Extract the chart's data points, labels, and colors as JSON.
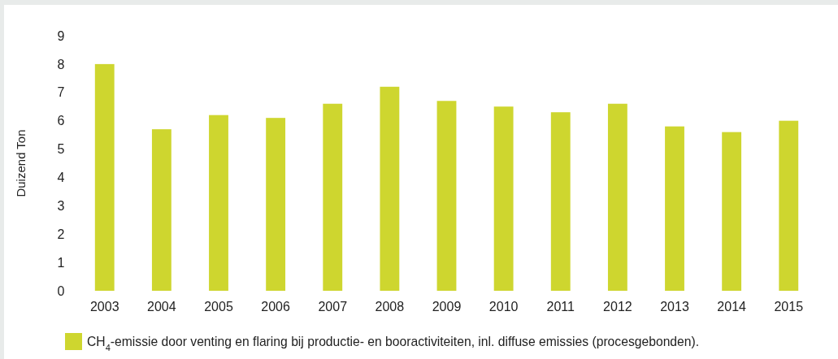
{
  "chart_data": {
    "type": "bar",
    "ylabel": "Duizend Ton",
    "categories": [
      "2003",
      "2004",
      "2005",
      "2006",
      "2007",
      "2008",
      "2009",
      "2010",
      "2011",
      "2012",
      "2013",
      "2014",
      "2015"
    ],
    "series": [
      {
        "name": "CH$_{4}$-emissie door venting en flaring bij productie- en booractiviteiten, inl. diffuse emissies (procesgebonden).",
        "color": "#ced62f",
        "values": [
          8.0,
          5.7,
          6.2,
          6.1,
          6.6,
          7.2,
          6.7,
          6.5,
          6.3,
          6.6,
          5.8,
          5.6,
          6.0
        ]
      }
    ],
    "ylim": [
      0,
      9
    ],
    "yticks": [
      0,
      1,
      2,
      3,
      4,
      5,
      6,
      7,
      8,
      9
    ],
    "legend": "bottom"
  }
}
